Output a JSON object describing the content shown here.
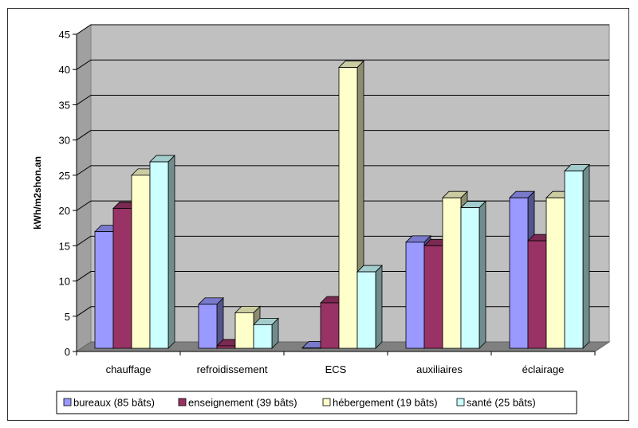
{
  "chart_data": {
    "type": "bar",
    "title": "",
    "xlabel": "",
    "ylabel": "kWh/m2shon.an",
    "ylim": [
      0,
      45
    ],
    "yticks": [
      0,
      5,
      10,
      15,
      20,
      25,
      30,
      35,
      40,
      45
    ],
    "grid": true,
    "legend_position": "bottom",
    "categories": [
      "chauffage",
      "refroidissement",
      "ECS",
      "auxiliaires",
      "éclairage"
    ],
    "series": [
      {
        "name": "bureaux (85 bâts)",
        "color": "#9999ff",
        "values": [
          17,
          6.7,
          0.5,
          15.5,
          21.8
        ]
      },
      {
        "name": "enseignement (39 bâts)",
        "color": "#993366",
        "values": [
          20.3,
          0.8,
          6.9,
          15,
          15.7
        ]
      },
      {
        "name": "hébergement (19 bâts)",
        "color": "#ffffcc",
        "values": [
          25,
          5.5,
          40.3,
          21.8,
          21.8
        ]
      },
      {
        "name": "santé (25 bâts)",
        "color": "#ccffff",
        "values": [
          26.9,
          3.8,
          11.3,
          20.4,
          25.6
        ]
      }
    ]
  }
}
